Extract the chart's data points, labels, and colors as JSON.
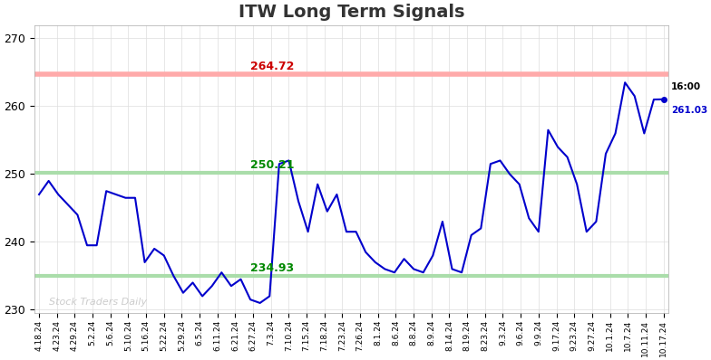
{
  "title": "ITW Long Term Signals",
  "title_fontsize": 14,
  "title_fontweight": "bold",
  "title_color": "#333333",
  "background_color": "#ffffff",
  "line_color": "#0000cc",
  "line_width": 1.5,
  "red_line": 264.72,
  "red_line_color": "#ffaaaa",
  "red_label_color": "#cc0000",
  "green_line_upper": 250.21,
  "green_line_lower": 234.93,
  "green_line_color": "#aaddaa",
  "green_label_color": "#008800",
  "last_price": 261.03,
  "last_price_color": "#0000cc",
  "last_time": "16:00",
  "last_time_color": "#000000",
  "last_dot_color": "#0000cc",
  "watermark": "Stock Traders Daily",
  "watermark_color": "#cccccc",
  "ylim": [
    229.5,
    272
  ],
  "yticks": [
    230,
    240,
    250,
    260,
    270
  ],
  "xtick_labels": [
    "4.18.24",
    "4.23.24",
    "4.29.24",
    "5.2.24",
    "5.6.24",
    "5.10.24",
    "5.16.24",
    "5.22.24",
    "5.29.24",
    "6.5.24",
    "6.11.24",
    "6.21.24",
    "6.27.24",
    "7.3.24",
    "7.10.24",
    "7.15.24",
    "7.18.24",
    "7.23.24",
    "7.26.24",
    "8.1.24",
    "8.6.24",
    "8.8.24",
    "8.9.24",
    "8.14.24",
    "8.19.24",
    "8.23.24",
    "9.3.24",
    "9.6.24",
    "9.9.24",
    "9.17.24",
    "9.23.24",
    "9.27.24",
    "10.1.24",
    "10.7.24",
    "10.11.24",
    "10.17.24"
  ],
  "prices": [
    247.0,
    249.0,
    247.0,
    245.5,
    244.0,
    239.5,
    239.5,
    247.5,
    247.0,
    246.5,
    246.5,
    237.0,
    239.0,
    238.0,
    235.0,
    232.5,
    234.0,
    232.0,
    233.5,
    235.5,
    233.5,
    234.5,
    231.5,
    231.0,
    232.0,
    251.5,
    252.0,
    246.0,
    241.5,
    248.5,
    244.5,
    247.0,
    241.5,
    241.5,
    238.5,
    237.0,
    236.0,
    235.5,
    237.5,
    236.0,
    235.5,
    238.0,
    243.0,
    236.0,
    235.5,
    241.0,
    242.0,
    251.5,
    252.0,
    250.0,
    248.5,
    243.5,
    241.5,
    256.5,
    254.0,
    252.5,
    248.5,
    241.5,
    243.0,
    253.0,
    256.0,
    263.5,
    261.5,
    256.0,
    261.0,
    261.03
  ]
}
